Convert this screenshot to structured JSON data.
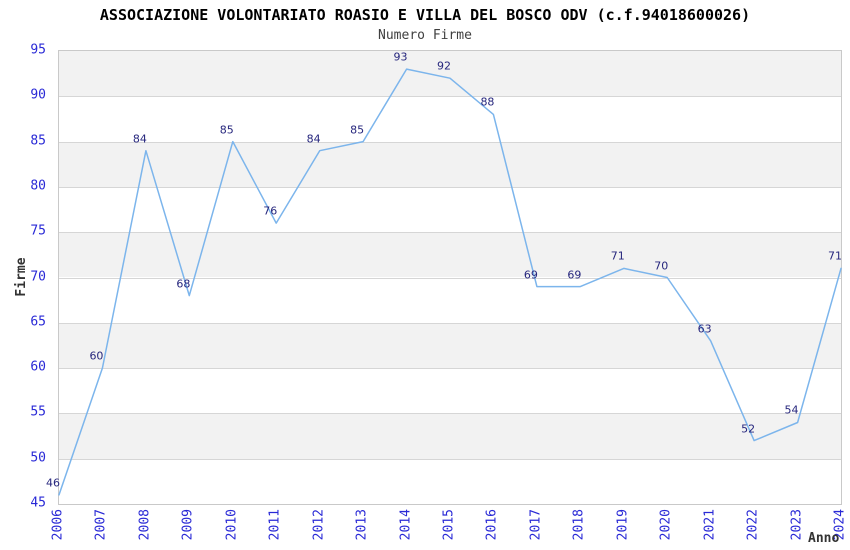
{
  "colors": {
    "line": "#7cb5ec",
    "tick_label": "#2929d6",
    "data_label": "#26267d",
    "band_fill": "#f2f2f2",
    "gridline": "#d6d6d6",
    "plot_border": "#c9c9c9",
    "title": "#000000",
    "subtitle": "#404040",
    "axis_title": "#333333"
  },
  "chart_data": {
    "type": "line",
    "title": "ASSOCIAZIONE VOLONTARIATO ROASIO E VILLA DEL BOSCO ODV (c.f.94018600026)",
    "subtitle": "Numero Firme",
    "categories": [
      "2006",
      "2007",
      "2008",
      "2009",
      "2010",
      "2011",
      "2012",
      "2013",
      "2014",
      "2015",
      "2016",
      "2017",
      "2018",
      "2019",
      "2020",
      "2021",
      "2022",
      "2023",
      "2024"
    ],
    "values": [
      46,
      60,
      84,
      68,
      85,
      76,
      84,
      85,
      93,
      92,
      88,
      69,
      69,
      71,
      70,
      63,
      52,
      54,
      71
    ],
    "series_name": "Numero Firme",
    "xlabel": "Anno",
    "ylabel": "Firme",
    "ylim": [
      45,
      95
    ],
    "ytick_step": 5,
    "yticks": [
      45,
      50,
      55,
      60,
      65,
      70,
      75,
      80,
      85,
      90,
      95
    ],
    "grid": true,
    "banded_background": true,
    "data_labels_visible": true,
    "legend_position": "none"
  }
}
